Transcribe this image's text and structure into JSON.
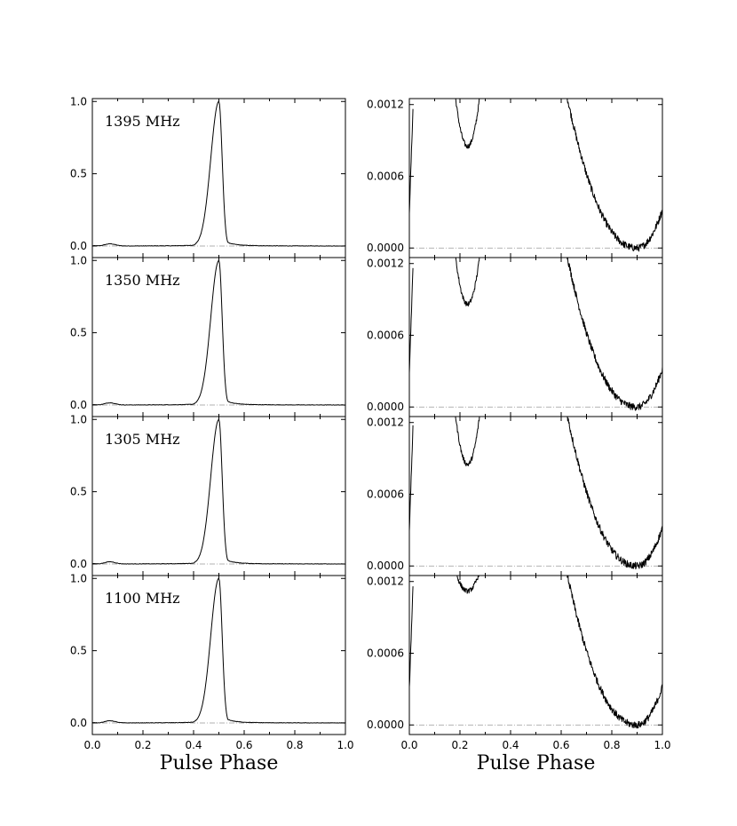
{
  "chart_data": {
    "type": "line",
    "layout": "4 rows x 2 columns, shared x axis per column",
    "xlabel": "Pulse Phase",
    "xlim": [
      0.0,
      1.0
    ],
    "xticks": [
      "0.0",
      "0.2",
      "0.4",
      "0.6",
      "0.8",
      "1.0"
    ],
    "left_column": {
      "description": "Normalized pulse profile",
      "ylim": [
        -0.08,
        1.02
      ],
      "yticks": [
        {
          "value": 0.0,
          "label": "0.0"
        },
        {
          "value": 0.5,
          "label": "0.5"
        },
        {
          "value": 1.0,
          "label": "1.0"
        }
      ],
      "baseline": 0.0
    },
    "right_column": {
      "description": "Zoom on low-intensity emission",
      "ylim": [
        -8e-05,
        0.00125
      ],
      "yticks": [
        {
          "value": 0.0,
          "label": "0.0000"
        },
        {
          "value": 0.0006,
          "label": "0.0006"
        },
        {
          "value": 0.0012,
          "label": "0.0012"
        }
      ],
      "baseline": 0.0
    },
    "panels": [
      {
        "frequency_label": "1395 MHz",
        "peak_phase": 0.5,
        "peak_value": 1.0,
        "zoom_min_phase": 0.9,
        "zoom_dip_phase": 0.23,
        "zoom_dip_value": 0.00085
      },
      {
        "frequency_label": "1350 MHz",
        "peak_phase": 0.5,
        "peak_value": 1.0,
        "zoom_min_phase": 0.9,
        "zoom_dip_phase": 0.23,
        "zoom_dip_value": 0.00086
      },
      {
        "frequency_label": "1305 MHz",
        "peak_phase": 0.5,
        "peak_value": 1.0,
        "zoom_min_phase": 0.9,
        "zoom_dip_phase": 0.23,
        "zoom_dip_value": 0.00085
      },
      {
        "frequency_label": "1100 MHz",
        "peak_phase": 0.5,
        "peak_value": 1.0,
        "zoom_min_phase": 0.9,
        "zoom_dip_phase": 0.23,
        "zoom_dip_value": 0.00112
      }
    ]
  }
}
